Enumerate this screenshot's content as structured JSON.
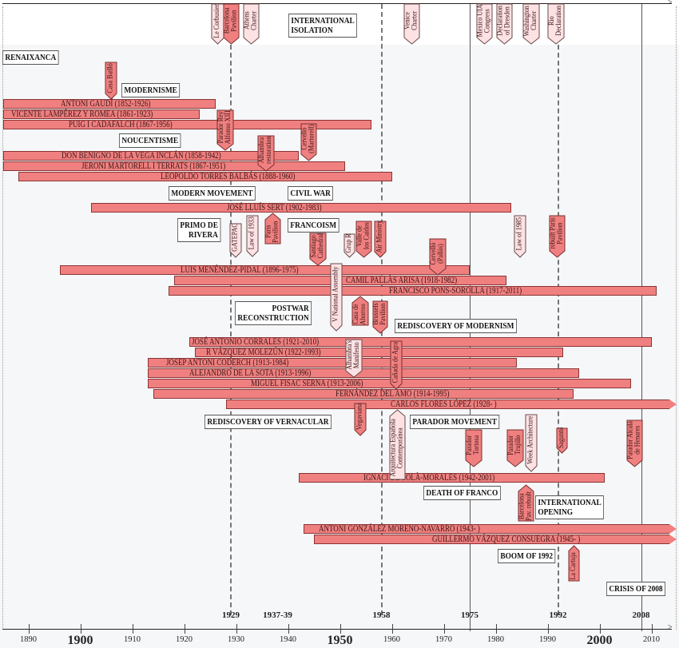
{
  "colors": {
    "bar": "#f08080",
    "marker_dark": "#f08080",
    "marker_light": "#fde2e4",
    "background": "#f6f7f9"
  },
  "periods": [
    {
      "text": "INTERNATIONAL\nISOLATION"
    },
    {
      "text": "RENAIXANCA"
    },
    {
      "text": "MODERNISME"
    },
    {
      "text": "NOUCENTISME"
    },
    {
      "text": "MODERN MOVEMENT"
    },
    {
      "text": "CIVIL WAR"
    },
    {
      "text": "PRIMO DE\nRIVERA"
    },
    {
      "text": "FRANCOISM"
    },
    {
      "text": "POSTWAR\nRECONSTRUCTION"
    },
    {
      "text": "REDISCOVERY OF MODERNISM"
    },
    {
      "text": "REDISCOVERY OF VERNACULAR"
    },
    {
      "text": "PARADOR MOVEMENT"
    },
    {
      "text": "DEATH OF FRANCO"
    },
    {
      "text": "INTERNATIONAL\nOPENING"
    },
    {
      "text": "BOOM OF 1992"
    },
    {
      "text": "CRISIS OF 2008"
    }
  ],
  "architects": [
    {
      "label": "ANTONI GAUDÍ (1852-1926)",
      "start": 1852,
      "end": 1926
    },
    {
      "label": "VICENTE LAMPÉREZ Y ROMEA (1861-1923)",
      "start": 1861,
      "end": 1923
    },
    {
      "label": "PUIG I CADAFALCH (1867-1956)",
      "start": 1867,
      "end": 1956
    },
    {
      "label": "DON BENIGNO DE LA VEGA INCLÁN (1858-1942)",
      "start": 1858,
      "end": 1942
    },
    {
      "label": "JERONI MARTORELL I TERRATS (1867-1951)",
      "start": 1867,
      "end": 1951
    },
    {
      "label": "LEOPOLDO TORRES BALBÁS (1888-1960)",
      "start": 1888,
      "end": 1960
    },
    {
      "label": "JOSÉ LLUÍS SERT (1902-1983)",
      "start": 1902,
      "end": 1983
    },
    {
      "label": "LUIS MENÉNDEZ-PIDAL (1896-1975)",
      "start": 1896,
      "end": 1975
    },
    {
      "label": "CAMIL PALLÀS ARISA (1918-1982)",
      "start": 1918,
      "end": 1982
    },
    {
      "label": "FRANCISCO PONS-SOROLLA (1917-2011)",
      "start": 1917,
      "end": 2011
    },
    {
      "label": "JOSÉ ANTONIO CORRALES (1921-2010)",
      "start": 1921,
      "end": 2010
    },
    {
      "label": "R VÁZQUEZ MOLEZÚN (1922-1993)",
      "start": 1922,
      "end": 1993
    },
    {
      "label": "JOSEP ANTONI CODERCH (1913-1984)",
      "start": 1913,
      "end": 1984
    },
    {
      "label": "ALEJANDRO DE LA SOTA (1913-1996)",
      "start": 1913,
      "end": 1996
    },
    {
      "label": "MIGUEL FISAC SERNA (1913-2006)",
      "start": 1913,
      "end": 2006
    },
    {
      "label": "FERNÁNDEZ DEL AMO (1914-1995)",
      "start": 1914,
      "end": 1995
    },
    {
      "label": "CARLOS FLORES LÓPEZ (1928- )",
      "start": 1928,
      "end": null
    },
    {
      "label": "IGNACI DE SOLÀ-MORALES (1942-2001)",
      "start": 1942,
      "end": 2001
    },
    {
      "label": "ANTONI GONZÁLEZ MORENO-NAVARRO (1943- )",
      "start": 1943,
      "end": null
    },
    {
      "label": "GUILLERMO VÁZQUEZ CONSUEGRA (1945- )",
      "start": 1945,
      "end": null
    }
  ],
  "events": [
    {
      "label": "Le Corbusier",
      "style": "light"
    },
    {
      "label": "Barcelona\nPavilion",
      "style": "dark"
    },
    {
      "label": "Athens\nCharter",
      "style": "light"
    },
    {
      "label": "Venice\nCharter",
      "style": "light"
    },
    {
      "label": "Mexico UIA\nCongress",
      "style": "light"
    },
    {
      "label": "Declaration\nof Dresden",
      "style": "light"
    },
    {
      "label": "Washington\nCharter",
      "style": "light"
    },
    {
      "label": "Rio\nDeclaration",
      "style": "light"
    },
    {
      "label": "Casa Batlló",
      "style": "dark"
    },
    {
      "label": "Parador Rey\nAlfonso XIII",
      "style": "dark"
    },
    {
      "label": "Alhambra\nrestoration",
      "style": "dark"
    },
    {
      "label": "Cervelló\n(Martorell)",
      "style": "dark"
    },
    {
      "label": "GATEPAC",
      "style": "light"
    },
    {
      "label": "Law of 1933",
      "style": "light"
    },
    {
      "label": "Paris\nPavilion",
      "style": "dark"
    },
    {
      "label": "Santiago\nCathedral",
      "style": "dark"
    },
    {
      "label": "Grup R",
      "style": "light"
    },
    {
      "label": "Valle de\nlos Caídos",
      "style": "dark"
    },
    {
      "label": "Air Ministry",
      "style": "dark"
    },
    {
      "label": "Cervelló\n(Pallás)",
      "style": "dark"
    },
    {
      "label": "Law of 1985",
      "style": "light"
    },
    {
      "label": "rebuilt Paris\nPavilion",
      "style": "dark"
    },
    {
      "label": "V National Assembly",
      "style": "light"
    },
    {
      "label": "Casa de\nAhorros",
      "style": "dark"
    },
    {
      "label": "Brussels\nPavilion",
      "style": "dark"
    },
    {
      "label": "Alhambra's\nManifesto",
      "style": "light"
    },
    {
      "label": "Cañada de Agra",
      "style": "dark"
    },
    {
      "label": "Vegaviana",
      "style": "dark"
    },
    {
      "label": "Arquitectura Española\nContemporánea",
      "style": "light"
    },
    {
      "label": "Parador\nTortosa",
      "style": "dark"
    },
    {
      "label": "Parador\nTrujillo",
      "style": "dark"
    },
    {
      "label": "Week Architecture",
      "style": "light"
    },
    {
      "label": "Sagunto",
      "style": "dark"
    },
    {
      "label": "Parador Alcalá\nde Henares",
      "style": "dark"
    },
    {
      "label": "Barcelona\nPav. rebuilt",
      "style": "dark"
    },
    {
      "label": "La Cartuja",
      "style": "dark"
    }
  ],
  "key_years": [
    "1929",
    "1937-39",
    "1958",
    "1975",
    "1992",
    "2008"
  ],
  "axis": {
    "min": 1890,
    "max": 2010,
    "ticks": [
      "1890",
      "1900",
      "1910",
      "1920",
      "1930",
      "1940",
      "1950",
      "1960",
      "1970",
      "1980",
      "1990",
      "2000",
      "2010"
    ],
    "major": [
      "1900",
      "1950",
      "2000"
    ]
  }
}
